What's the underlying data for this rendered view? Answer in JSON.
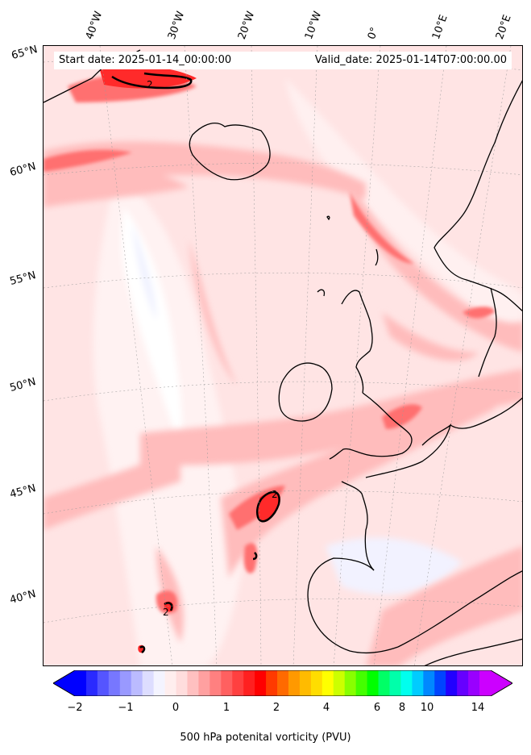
{
  "map": {
    "start_date": "Start date: 2025-01-14_00:00:00",
    "valid_date": "Valid_date: 2025-01-14T07:00:00.00",
    "longitude_labels": [
      "40°W",
      "30°W",
      "20°W",
      "10°W",
      "0°",
      "10°E",
      "20°E"
    ],
    "latitude_labels": [
      "65°N",
      "60°N",
      "55°N",
      "50°N",
      "45°N",
      "40°N"
    ],
    "contour_label": "2",
    "colorbar": {
      "label": "500 hPa potenital vorticity (PVU)",
      "tick_labels": [
        "−2",
        "−1",
        "0",
        "1",
        "2",
        "4",
        "6",
        "8",
        "10",
        "14"
      ],
      "colors": [
        "#0000ff",
        "#2a2aff",
        "#5555ff",
        "#7777ff",
        "#9999ff",
        "#bbbbff",
        "#ddddff",
        "#f4f4ff",
        "#ffeeee",
        "#ffdddd",
        "#ffc0c0",
        "#ffa0a0",
        "#ff8080",
        "#ff6060",
        "#ff4040",
        "#ff2020",
        "#ff0000",
        "#ff3a00",
        "#ff6a00",
        "#ff9900",
        "#ffbb00",
        "#ffdd00",
        "#ffff00",
        "#ccff00",
        "#88ff00",
        "#44ff00",
        "#00ff00",
        "#00ff66",
        "#00ffaa",
        "#00ffee",
        "#00ccff",
        "#0088ff",
        "#0044ff",
        "#2200ff",
        "#6600ff",
        "#9900ff",
        "#cc00ff"
      ]
    }
  }
}
